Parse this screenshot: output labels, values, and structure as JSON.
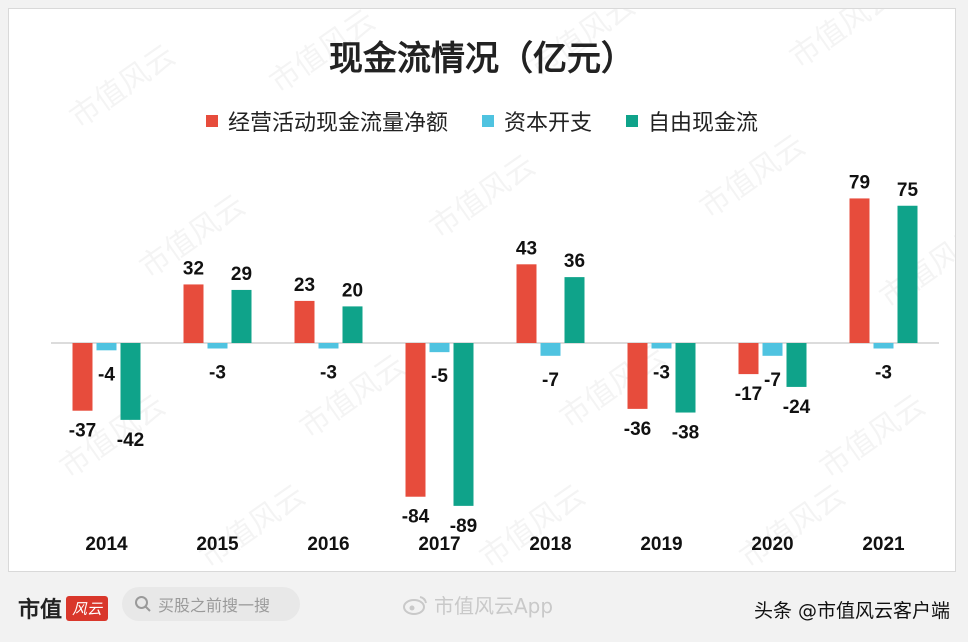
{
  "chart_data": {
    "type": "bar",
    "title": "现金流情况（亿元）",
    "categories": [
      "2014",
      "2015",
      "2016",
      "2017",
      "2018",
      "2019",
      "2020",
      "2021"
    ],
    "series": [
      {
        "name": "经营活动现金流量净额",
        "color": "#e74c3c",
        "values": [
          -37,
          32,
          23,
          -84,
          43,
          -36,
          -17,
          79
        ]
      },
      {
        "name": "资本开支",
        "color": "#4fc3e0",
        "values": [
          -4,
          -3,
          -3,
          -5,
          -7,
          -3,
          -7,
          -3
        ]
      },
      {
        "name": "自由现金流",
        "color": "#0fa38a",
        "values": [
          -42,
          29,
          20,
          -89,
          36,
          -38,
          -24,
          75
        ]
      }
    ],
    "ylim": [
      -100,
      100
    ],
    "grid": false,
    "legend": "top-center"
  },
  "watermark": {
    "text": "市值风云"
  },
  "footer": {
    "brand": "市值",
    "brand_badge": "风云",
    "search_placeholder": "买股之前搜一搜",
    "weibo_text": "市值风云App",
    "credit": "头条 @市值风云客户端"
  }
}
